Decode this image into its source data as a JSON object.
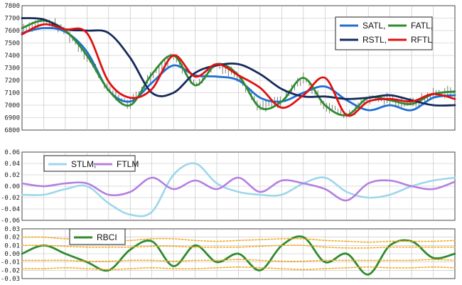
{
  "chart_data": [
    {
      "type": "line",
      "panel": "price",
      "ylim": [
        6800,
        7800
      ],
      "yticks": [
        "7800",
        "7700",
        "7600",
        "7500",
        "7400",
        "7300",
        "7200",
        "7100",
        "7000",
        "6900",
        "6800"
      ],
      "grid": true,
      "legend_placement": "top-right",
      "x": [
        0,
        10,
        20,
        30,
        40,
        50,
        60,
        70,
        80,
        90,
        100,
        110,
        120,
        130,
        140,
        150,
        160,
        170,
        180,
        190,
        200
      ],
      "series": [
        {
          "name": "SATL,",
          "color": "#1f6fd0",
          "values": [
            7580,
            7620,
            7590,
            7430,
            7120,
            7030,
            7180,
            7320,
            7240,
            7230,
            7200,
            7060,
            7030,
            7100,
            7150,
            7040,
            6960,
            7000,
            6960,
            7060,
            7080
          ]
        },
        {
          "name": "FATL,",
          "color": "#2e8b2e",
          "values": [
            7620,
            7680,
            7600,
            7400,
            7120,
            7000,
            7250,
            7400,
            7160,
            7330,
            7240,
            6980,
            7030,
            7220,
            7000,
            6920,
            7060,
            7040,
            7010,
            7090,
            7110
          ]
        },
        {
          "name": "RSTL,",
          "color": "#162a5c",
          "values": [
            7700,
            7690,
            7610,
            7600,
            7580,
            7380,
            7100,
            7100,
            7260,
            7320,
            7330,
            7250,
            7130,
            7070,
            7070,
            7050,
            7060,
            7080,
            7040,
            7000,
            7000
          ]
        },
        {
          "name": "RFTL",
          "color": "#e01010",
          "values": [
            7570,
            7650,
            7610,
            7580,
            7190,
            7060,
            7130,
            7400,
            7230,
            7330,
            7240,
            7140,
            6980,
            7080,
            7220,
            6920,
            7030,
            7050,
            7030,
            7090,
            7050
          ]
        }
      ]
    },
    {
      "type": "line",
      "panel": "trend",
      "ylim": [
        -0.06,
        0.06
      ],
      "yticks": [
        "0.06",
        "0.04",
        "0.02",
        "0.00",
        "-0.02",
        "-0.04",
        "-0.06"
      ],
      "grid": true,
      "legend_placement": "top-left",
      "x": [
        0,
        10,
        20,
        30,
        40,
        50,
        60,
        70,
        80,
        90,
        100,
        110,
        120,
        130,
        140,
        150,
        160,
        170,
        180,
        190,
        200
      ],
      "series": [
        {
          "name": "STLM,",
          "color": "#9dd6ec",
          "values": [
            -0.015,
            -0.015,
            -0.005,
            0.0,
            -0.03,
            -0.05,
            -0.045,
            0.02,
            0.04,
            0.005,
            -0.01,
            -0.015,
            -0.015,
            0.005,
            0.015,
            -0.01,
            -0.02,
            -0.015,
            0.0,
            0.01,
            0.015
          ]
        },
        {
          "name": "FTLM",
          "color": "#b57ee0",
          "values": [
            0.005,
            0.0,
            0.005,
            0.005,
            -0.015,
            -0.01,
            0.015,
            -0.005,
            0.01,
            -0.005,
            0.015,
            -0.01,
            0.01,
            0.005,
            -0.005,
            -0.025,
            0.005,
            0.01,
            0.0,
            -0.005,
            0.008
          ]
        }
      ]
    },
    {
      "type": "line",
      "panel": "rbci",
      "ylim": [
        -0.03,
        0.03
      ],
      "yticks": [
        "0.03",
        "0.02",
        "0.01",
        "0.00",
        "-0.01",
        "-0.02",
        "-0.03"
      ],
      "grid": true,
      "legend_placement": "top-left",
      "x": [
        0,
        10,
        20,
        30,
        40,
        50,
        60,
        70,
        80,
        90,
        100,
        110,
        120,
        130,
        140,
        150,
        160,
        170,
        180,
        190,
        200
      ],
      "series": [
        {
          "name": "RBCI",
          "color": "#2e8b2e",
          "values": [
            0.0,
            0.01,
            0.0,
            -0.01,
            -0.02,
            0.005,
            0.015,
            -0.015,
            0.01,
            -0.01,
            0.0,
            -0.02,
            0.01,
            0.02,
            -0.01,
            0.0,
            -0.025,
            0.01,
            0.015,
            -0.005,
            0.0
          ]
        },
        {
          "color": "#f2a51a",
          "dashed": true,
          "values": [
            0.02,
            0.02,
            0.018,
            0.018,
            0.016,
            0.016,
            0.018,
            0.018,
            0.016,
            0.015,
            0.016,
            0.017,
            0.018,
            0.018,
            0.016,
            0.015,
            0.014,
            0.015,
            0.015,
            0.015,
            0.016
          ]
        },
        {
          "color": "#f2a51a",
          "dashed": true,
          "values": [
            0.01,
            0.01,
            0.009,
            0.008,
            0.008,
            0.008,
            0.009,
            0.009,
            0.008,
            0.008,
            0.008,
            0.009,
            0.01,
            0.01,
            0.008,
            0.007,
            0.007,
            0.008,
            0.008,
            0.008,
            0.008
          ]
        },
        {
          "color": "#f2a51a",
          "dashed": true,
          "values": [
            -0.008,
            -0.008,
            -0.008,
            -0.009,
            -0.009,
            -0.008,
            -0.008,
            -0.009,
            -0.008,
            -0.008,
            -0.007,
            -0.008,
            -0.009,
            -0.009,
            -0.008,
            -0.008,
            -0.008,
            -0.008,
            -0.008,
            -0.007,
            -0.008
          ]
        },
        {
          "color": "#f2a51a",
          "dashed": true,
          "values": [
            -0.018,
            -0.018,
            -0.017,
            -0.018,
            -0.019,
            -0.018,
            -0.017,
            -0.018,
            -0.018,
            -0.017,
            -0.016,
            -0.017,
            -0.018,
            -0.019,
            -0.018,
            -0.017,
            -0.016,
            -0.017,
            -0.017,
            -0.016,
            -0.017
          ]
        }
      ]
    }
  ]
}
